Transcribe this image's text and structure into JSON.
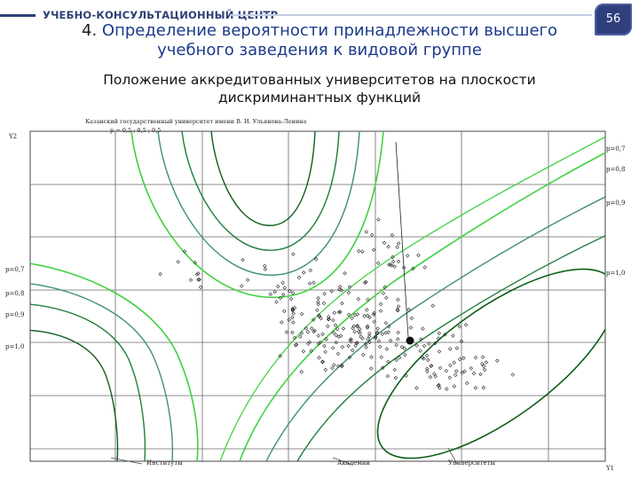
{
  "header": {
    "brand": "УЧЕБНО-КОНСУЛЬТАЦИОННЫЙ ЦЕНТР",
    "page_number": "56"
  },
  "title": {
    "number": "4.",
    "text": "Определение вероятности принадлежности высшего учебного заведения к видовой группе"
  },
  "subtitle": "Положение аккредитованных университетов на плоскости дискриминантных функций",
  "figure": {
    "caption_line1": "Казанский государственный университет имени В. И. Ульянова-Ленина",
    "caption_line2": "p = 0,5 ; 0,5 ; 0,5",
    "axis_y": "Y2",
    "axis_x": "Y1",
    "left_labels": [
      "p=0,7",
      "p=0,8",
      "p=0,9",
      "p=1,0"
    ],
    "right_labels": [
      "p=0,7",
      "p=0,8",
      "p=0,9",
      "p=1,0"
    ],
    "groups": [
      "Институты",
      "Академии",
      "Университеты"
    ]
  },
  "colors": {
    "title_blue": "#1a3a8a",
    "brand_navy": "#2d3f75",
    "contour_bright": "#3fd13f",
    "contour_teal": "#3f8f77",
    "contour_dark": "#0d5f1a",
    "grid": "#555555"
  }
}
